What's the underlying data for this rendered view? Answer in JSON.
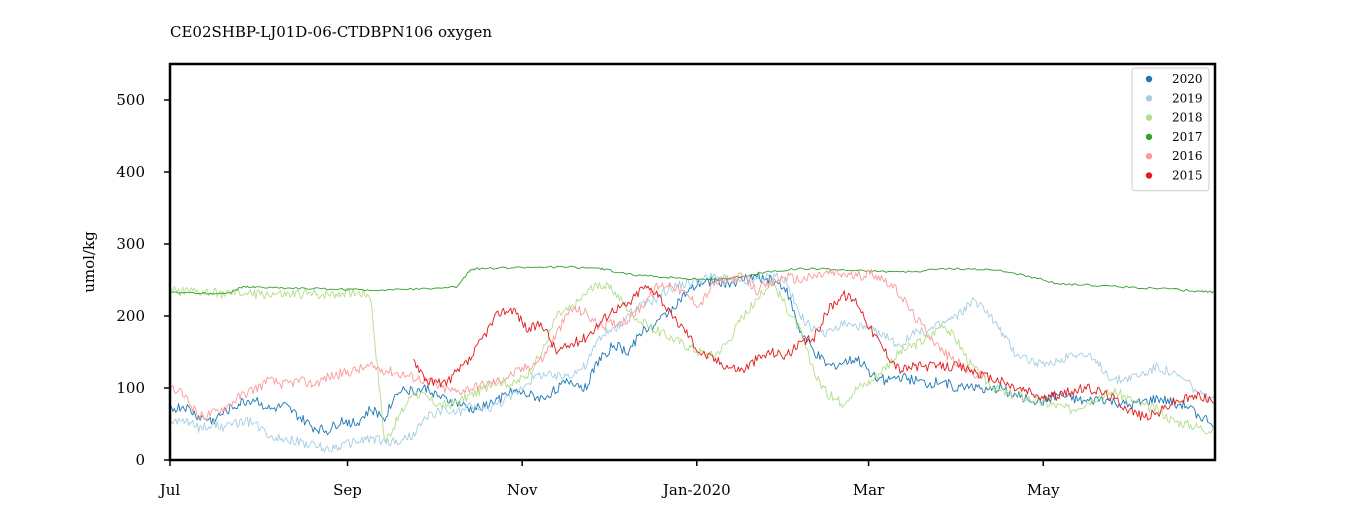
{
  "chart_data": {
    "type": "line",
    "title": "CE02SHBP-LJ01D-06-CTDBPN106 oxygen",
    "xlabel": "",
    "ylabel": "umol/kg",
    "ylim": [
      0,
      550
    ],
    "y_ticks": [
      0,
      100,
      200,
      300,
      400,
      500
    ],
    "x_unit": "day of seasonal year (0 = Jul 1)",
    "xlim": [
      0,
      365
    ],
    "x_ticks": [
      {
        "x": 0,
        "label": "Jul"
      },
      {
        "x": 62,
        "label": "Sep"
      },
      {
        "x": 123,
        "label": "Nov"
      },
      {
        "x": 184,
        "label": "Jan-2020"
      },
      {
        "x": 244,
        "label": "Mar"
      },
      {
        "x": 305,
        "label": "May"
      }
    ],
    "grid": false,
    "legend_position": "top-right",
    "series": [
      {
        "name": "2020",
        "color": "#1f78b4",
        "x": [
          0,
          5,
          10,
          15,
          20,
          25,
          30,
          35,
          40,
          45,
          50,
          55,
          60,
          65,
          70,
          75,
          80,
          85,
          90,
          95,
          100,
          105,
          110,
          115,
          120,
          125,
          130,
          135,
          140,
          145,
          150,
          155,
          160,
          165,
          170,
          175,
          180,
          185,
          190,
          195,
          200,
          205,
          210,
          215,
          220,
          225,
          230,
          235,
          240,
          245,
          250,
          255,
          260,
          265,
          270,
          275,
          280,
          285,
          290,
          295,
          300,
          305,
          310,
          315,
          320,
          325,
          330,
          335,
          340,
          345,
          350,
          355,
          360,
          365
        ],
        "y": [
          70,
          75,
          60,
          55,
          70,
          80,
          85,
          70,
          75,
          60,
          45,
          40,
          55,
          50,
          70,
          60,
          100,
          95,
          100,
          85,
          80,
          70,
          75,
          85,
          95,
          90,
          85,
          100,
          110,
          100,
          140,
          160,
          150,
          180,
          190,
          210,
          230,
          245,
          250,
          245,
          250,
          255,
          250,
          240,
          180,
          150,
          130,
          135,
          140,
          120,
          110,
          115,
          110,
          105,
          110,
          100,
          105,
          95,
          100,
          90,
          85,
          80,
          90,
          85,
          80,
          85,
          80,
          75,
          80,
          85,
          80,
          75,
          60,
          50
        ]
      },
      {
        "name": "2019",
        "color": "#a6cee3",
        "x": [
          0,
          5,
          10,
          15,
          20,
          25,
          30,
          35,
          40,
          45,
          50,
          55,
          60,
          65,
          70,
          75,
          80,
          85,
          90,
          95,
          100,
          105,
          110,
          115,
          120,
          125,
          130,
          135,
          140,
          145,
          150,
          155,
          160,
          165,
          170,
          175,
          180,
          185,
          190,
          195,
          200,
          205,
          210,
          215,
          220,
          225,
          230,
          235,
          240,
          245,
          250,
          255,
          260,
          265,
          270,
          275,
          280,
          285,
          290,
          295,
          300,
          305,
          310,
          315,
          320,
          325,
          330,
          335,
          340,
          345,
          350,
          355,
          360,
          365
        ],
        "y": [
          50,
          55,
          45,
          50,
          45,
          55,
          50,
          35,
          30,
          25,
          20,
          15,
          20,
          25,
          30,
          25,
          25,
          35,
          60,
          70,
          65,
          75,
          70,
          80,
          90,
          110,
          120,
          115,
          120,
          130,
          170,
          180,
          200,
          215,
          225,
          240,
          245,
          250,
          255,
          250,
          245,
          250,
          255,
          250,
          200,
          180,
          175,
          190,
          185,
          180,
          170,
          160,
          175,
          180,
          190,
          200,
          220,
          210,
          180,
          150,
          140,
          130,
          135,
          150,
          145,
          130,
          110,
          115,
          120,
          130,
          120,
          110,
          90,
          80
        ]
      },
      {
        "name": "2018",
        "color": "#b2df8a",
        "x": [
          0,
          5,
          10,
          15,
          20,
          25,
          30,
          35,
          40,
          45,
          50,
          55,
          60,
          65,
          70,
          75,
          80,
          85,
          90,
          95,
          100,
          105,
          110,
          115,
          120,
          125,
          130,
          135,
          140,
          145,
          150,
          155,
          160,
          165,
          170,
          175,
          180,
          185,
          190,
          195,
          200,
          205,
          210,
          215,
          220,
          225,
          230,
          235,
          240,
          245,
          250,
          255,
          260,
          265,
          270,
          275,
          280,
          285,
          290,
          295,
          300,
          305,
          310,
          315,
          320,
          325,
          330,
          335,
          340,
          345,
          350,
          355,
          360,
          365
        ],
        "y": [
          235,
          234,
          233,
          232,
          231,
          232,
          230,
          231,
          229,
          230,
          230,
          231,
          232,
          233,
          230,
          25,
          60,
          95,
          85,
          75,
          80,
          90,
          100,
          110,
          105,
          120,
          150,
          200,
          210,
          230,
          245,
          235,
          210,
          190,
          180,
          170,
          160,
          150,
          145,
          165,
          200,
          220,
          250,
          215,
          180,
          120,
          90,
          80,
          100,
          110,
          130,
          150,
          160,
          170,
          190,
          165,
          130,
          110,
          95,
          90,
          85,
          80,
          75,
          70,
          80,
          90,
          95,
          85,
          75,
          70,
          55,
          50,
          45,
          40
        ]
      },
      {
        "name": "2017",
        "color": "#33a02c",
        "x": [
          0,
          10,
          20,
          25,
          30,
          40,
          50,
          60,
          70,
          80,
          90,
          100,
          105,
          110,
          120,
          130,
          140,
          150,
          155,
          160,
          170,
          180,
          190,
          200,
          210,
          220,
          230,
          240,
          250,
          260,
          270,
          280,
          290,
          300,
          310,
          320,
          330,
          340,
          350,
          360,
          365
        ],
        "y": [
          233,
          232,
          231,
          240,
          240,
          239,
          238,
          237,
          236,
          237,
          238,
          240,
          265,
          266,
          267,
          268,
          268,
          266,
          262,
          258,
          255,
          252,
          250,
          255,
          262,
          266,
          265,
          263,
          262,
          261,
          266,
          265,
          263,
          255,
          245,
          243,
          241,
          239,
          237,
          234,
          233
        ]
      },
      {
        "name": "2016",
        "color": "#fb9a99",
        "x": [
          0,
          5,
          10,
          15,
          20,
          25,
          30,
          35,
          40,
          45,
          50,
          55,
          60,
          65,
          70,
          75,
          80,
          85,
          90,
          95,
          100,
          105,
          110,
          115,
          120,
          125,
          130,
          135,
          140,
          145,
          150,
          155,
          160,
          165,
          170,
          175,
          180,
          185,
          190,
          195,
          200,
          205,
          210,
          215,
          220,
          225,
          230,
          235,
          240,
          245,
          250,
          255,
          260,
          265,
          270,
          275,
          280,
          285
        ],
        "y": [
          100,
          90,
          60,
          65,
          75,
          90,
          100,
          110,
          105,
          110,
          105,
          115,
          120,
          125,
          130,
          125,
          120,
          115,
          110,
          100,
          95,
          100,
          105,
          110,
          120,
          130,
          140,
          175,
          210,
          205,
          185,
          190,
          195,
          215,
          240,
          245,
          230,
          215,
          245,
          250,
          255,
          235,
          245,
          255,
          250,
          255,
          260,
          258,
          255,
          260,
          250,
          230,
          200,
          175,
          150,
          135,
          120,
          115
        ]
      },
      {
        "name": "2015",
        "color": "#e31a1c",
        "x": [
          85,
          90,
          95,
          100,
          105,
          110,
          115,
          120,
          125,
          130,
          135,
          140,
          145,
          150,
          155,
          160,
          165,
          170,
          175,
          180,
          185,
          190,
          195,
          200,
          205,
          210,
          215,
          220,
          225,
          230,
          235,
          240,
          245,
          250,
          255,
          260,
          265,
          270,
          275,
          280,
          285,
          290,
          295,
          300,
          305,
          310,
          315,
          320,
          325,
          330,
          335,
          340,
          345,
          350,
          355,
          360,
          365
        ],
        "y": [
          140,
          110,
          105,
          120,
          140,
          175,
          205,
          210,
          180,
          190,
          150,
          160,
          170,
          190,
          210,
          215,
          240,
          235,
          200,
          180,
          150,
          140,
          130,
          125,
          140,
          150,
          145,
          160,
          170,
          210,
          230,
          220,
          180,
          150,
          125,
          130,
          130,
          130,
          130,
          125,
          115,
          110,
          100,
          95,
          85,
          90,
          95,
          100,
          95,
          85,
          70,
          60,
          65,
          80,
          85,
          90,
          80
        ]
      }
    ]
  }
}
